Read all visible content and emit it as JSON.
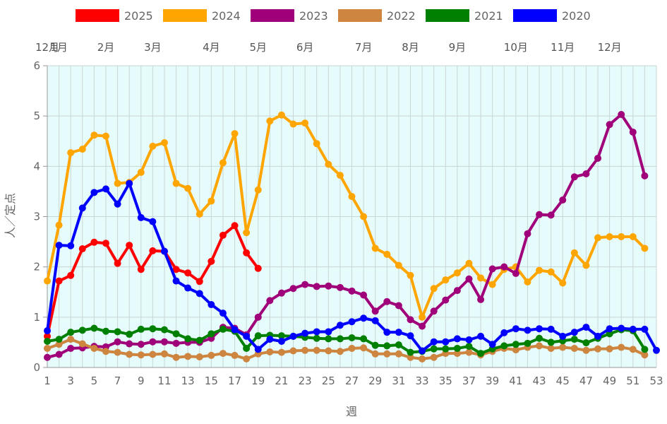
{
  "chart_data": {
    "type": "line",
    "xlabel": "週",
    "ylabel": "人／定点",
    "xlim": [
      1,
      53
    ],
    "ylim": [
      0,
      6
    ],
    "x_ticks": [
      "1",
      "3",
      "5",
      "7",
      "9",
      "11",
      "13",
      "15",
      "17",
      "19",
      "21",
      "23",
      "25",
      "27",
      "29",
      "31",
      "33",
      "35",
      "37",
      "39",
      "41",
      "43",
      "45",
      "47",
      "49",
      "51",
      "53"
    ],
    "y_ticks": [
      "0",
      "1",
      "2",
      "3",
      "4",
      "5",
      "6"
    ],
    "month_labels": [
      {
        "week": 1,
        "label": "12月"
      },
      {
        "week": 2,
        "label": "1月"
      },
      {
        "week": 6,
        "label": "2月"
      },
      {
        "week": 10,
        "label": "3月"
      },
      {
        "week": 15,
        "label": "4月"
      },
      {
        "week": 19,
        "label": "5月"
      },
      {
        "week": 23,
        "label": "6月"
      },
      {
        "week": 28,
        "label": "7月"
      },
      {
        "week": 32,
        "label": "8月"
      },
      {
        "week": 36,
        "label": "9月"
      },
      {
        "week": 41,
        "label": "10月"
      },
      {
        "week": 45,
        "label": "11月"
      },
      {
        "week": 49,
        "label": "12月"
      }
    ],
    "grid": true,
    "legend_position": "top",
    "plot_background": "#e6fbfb",
    "series": [
      {
        "name": "2025",
        "color": "#ff0000",
        "values": [
          0.62,
          1.72,
          1.83,
          2.36,
          2.49,
          2.47,
          2.07,
          2.43,
          1.95,
          2.32,
          2.31,
          1.95,
          1.88,
          1.71,
          2.11,
          2.63,
          2.82,
          2.28,
          1.97
        ]
      },
      {
        "name": "2024",
        "color": "#ffa500",
        "values": [
          1.72,
          2.83,
          4.27,
          4.34,
          4.62,
          4.6,
          3.66,
          3.68,
          3.88,
          4.4,
          4.47,
          3.66,
          3.56,
          3.05,
          3.31,
          4.07,
          4.65,
          2.68,
          3.53,
          4.9,
          5.02,
          4.84,
          4.86,
          4.45,
          4.04,
          3.82,
          3.4,
          3.0,
          2.37,
          2.25,
          2.03,
          1.83,
          1.0,
          1.57,
          1.74,
          1.88,
          2.07,
          1.78,
          1.65,
          1.95,
          2.0,
          1.7,
          1.93,
          1.9,
          1.68,
          2.28,
          2.03,
          2.58,
          2.6,
          2.6,
          2.6,
          2.37
        ]
      },
      {
        "name": "2023",
        "color": "#a0007a",
        "values": [
          0.2,
          0.26,
          0.38,
          0.39,
          0.42,
          0.41,
          0.51,
          0.47,
          0.46,
          0.51,
          0.51,
          0.48,
          0.5,
          0.5,
          0.58,
          0.8,
          0.78,
          0.65,
          1.0,
          1.33,
          1.48,
          1.57,
          1.65,
          1.61,
          1.62,
          1.59,
          1.52,
          1.44,
          1.12,
          1.31,
          1.23,
          0.95,
          0.82,
          1.12,
          1.34,
          1.53,
          1.76,
          1.35,
          1.96,
          2.0,
          1.87,
          2.66,
          3.04,
          3.03,
          3.33,
          3.79,
          3.85,
          4.16,
          4.83,
          5.03,
          4.68,
          3.81
        ]
      },
      {
        "name": "2022",
        "color": "#cd853f",
        "values": [
          0.38,
          0.46,
          0.56,
          0.47,
          0.38,
          0.32,
          0.3,
          0.26,
          0.25,
          0.26,
          0.27,
          0.2,
          0.22,
          0.21,
          0.24,
          0.28,
          0.24,
          0.17,
          0.27,
          0.31,
          0.3,
          0.33,
          0.34,
          0.34,
          0.33,
          0.32,
          0.38,
          0.39,
          0.27,
          0.27,
          0.27,
          0.2,
          0.17,
          0.2,
          0.28,
          0.28,
          0.3,
          0.25,
          0.32,
          0.38,
          0.35,
          0.4,
          0.43,
          0.38,
          0.4,
          0.38,
          0.34,
          0.37,
          0.37,
          0.4,
          0.36,
          0.25
        ]
      },
      {
        "name": "2021",
        "color": "#008000",
        "values": [
          0.52,
          0.56,
          0.7,
          0.74,
          0.78,
          0.72,
          0.71,
          0.66,
          0.76,
          0.77,
          0.75,
          0.67,
          0.57,
          0.54,
          0.67,
          0.76,
          0.72,
          0.38,
          0.63,
          0.64,
          0.63,
          0.62,
          0.6,
          0.58,
          0.57,
          0.57,
          0.59,
          0.57,
          0.44,
          0.43,
          0.45,
          0.3,
          0.32,
          0.37,
          0.37,
          0.38,
          0.42,
          0.28,
          0.37,
          0.43,
          0.46,
          0.48,
          0.58,
          0.5,
          0.53,
          0.56,
          0.49,
          0.58,
          0.67,
          0.75,
          0.73,
          0.36
        ]
      },
      {
        "name": "2020",
        "color": "#0000ff",
        "values": [
          0.73,
          2.43,
          2.42,
          3.17,
          3.48,
          3.55,
          3.25,
          3.66,
          2.98,
          2.9,
          2.31,
          1.72,
          1.58,
          1.47,
          1.25,
          1.08,
          0.75,
          0.62,
          0.36,
          0.56,
          0.52,
          0.62,
          0.68,
          0.71,
          0.71,
          0.84,
          0.91,
          0.98,
          0.93,
          0.7,
          0.7,
          0.63,
          0.33,
          0.51,
          0.51,
          0.57,
          0.55,
          0.62,
          0.46,
          0.69,
          0.77,
          0.74,
          0.77,
          0.76,
          0.62,
          0.7,
          0.8,
          0.62,
          0.77,
          0.78,
          0.76,
          0.76,
          0.34
        ]
      }
    ]
  }
}
